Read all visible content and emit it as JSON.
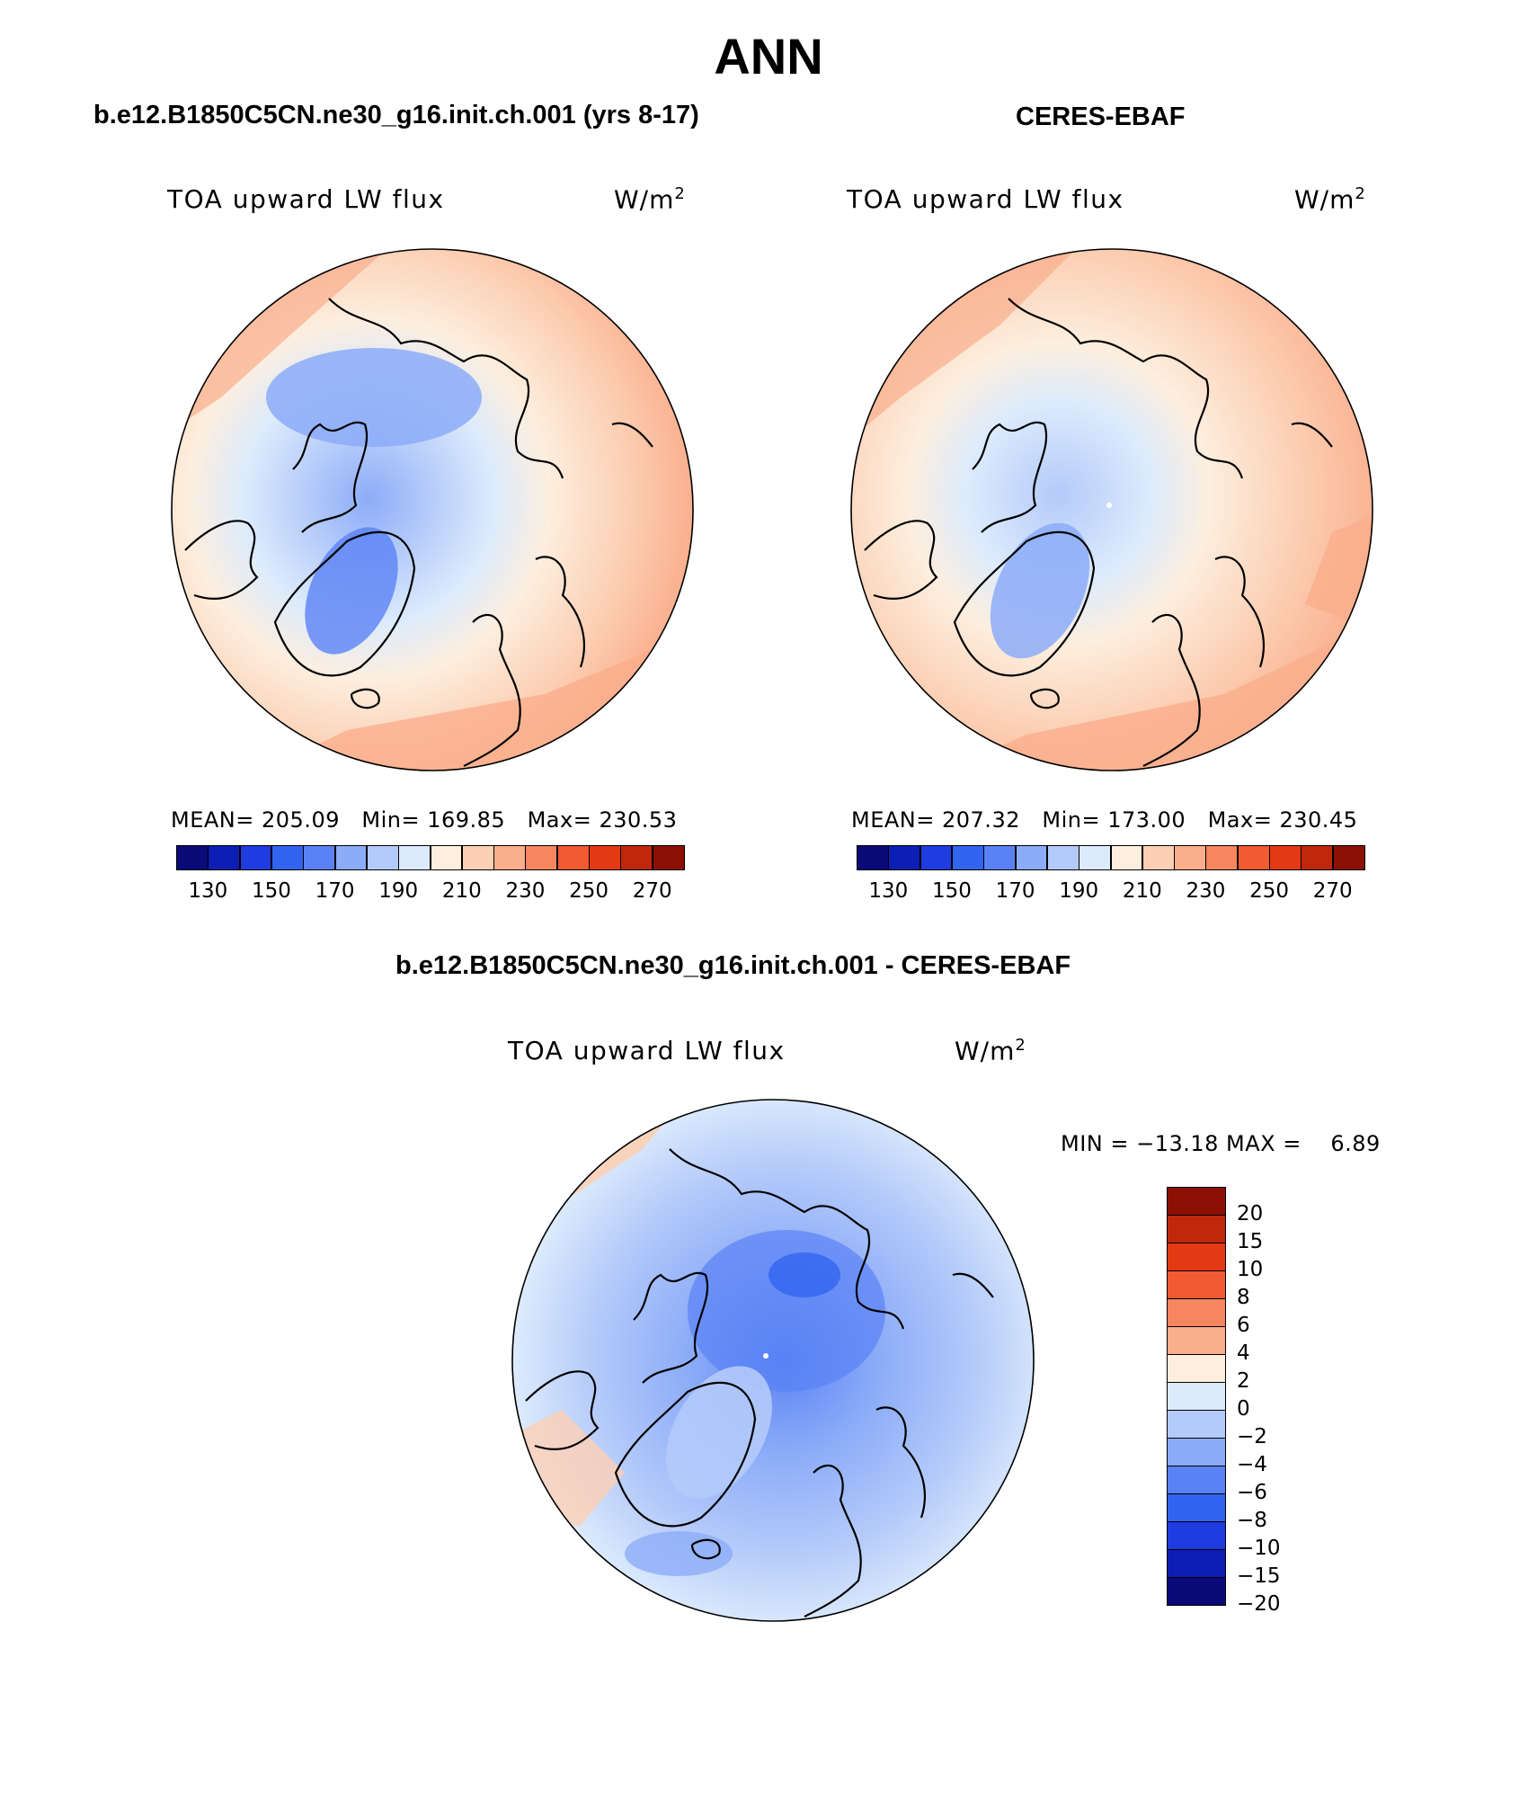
{
  "title": "ANN",
  "panels": [
    {
      "case_title": "b.e12.B1850C5CN.ne30_g16.init.ch.001 (yrs 8-17)",
      "variable_label": "TOA upward LW flux",
      "units_base": "W/m",
      "units_exp": "2",
      "mean_label": "MEAN=",
      "mean_value": "205.09",
      "min_label": "Min=",
      "min_value": "169.85",
      "max_label": "Max=",
      "max_value": "230.53"
    },
    {
      "case_title": "CERES-EBAF",
      "variable_label": "TOA upward LW flux",
      "units_base": "W/m",
      "units_exp": "2",
      "mean_label": "MEAN=",
      "mean_value": "207.32",
      "min_label": "Min=",
      "min_value": "173.00",
      "max_label": "Max=",
      "max_value": "230.45"
    }
  ],
  "diff_panel": {
    "case_title": "b.e12.B1850C5CN.ne30_g16.init.ch.001 - CERES-EBAF",
    "variable_label": "TOA upward LW flux",
    "units_base": "W/m",
    "units_exp": "2",
    "minmax_text": "MIN = −13.18 MAX =    6.89"
  },
  "colorbar_abs": {
    "tick_labels": [
      "130",
      "150",
      "170",
      "190",
      "210",
      "230",
      "250",
      "270"
    ],
    "colors": [
      "#0a0a78",
      "#0c1eb4",
      "#1e3ce0",
      "#3264f0",
      "#5a82f5",
      "#8cacf8",
      "#b4cafa",
      "#dcebfc",
      "#fdeede",
      "#fcd0b5",
      "#faae8c",
      "#f7865e",
      "#f25a32",
      "#e33a14",
      "#c0280c",
      "#8c1004"
    ]
  },
  "colorbar_diff": {
    "tick_labels": [
      "20",
      "15",
      "10",
      "8",
      "6",
      "4",
      "2",
      "0",
      "−2",
      "−4",
      "−6",
      "−8",
      "−10",
      "−15",
      "−20"
    ],
    "colors": [
      "#8c1004",
      "#c0280c",
      "#e33a14",
      "#f25a32",
      "#f7865e",
      "#faae8c",
      "#fdeede",
      "#dcebfc",
      "#b4cafa",
      "#8cacf8",
      "#5a82f5",
      "#3264f0",
      "#1e3ce0",
      "#0c1eb4",
      "#0a0a78"
    ]
  }
}
